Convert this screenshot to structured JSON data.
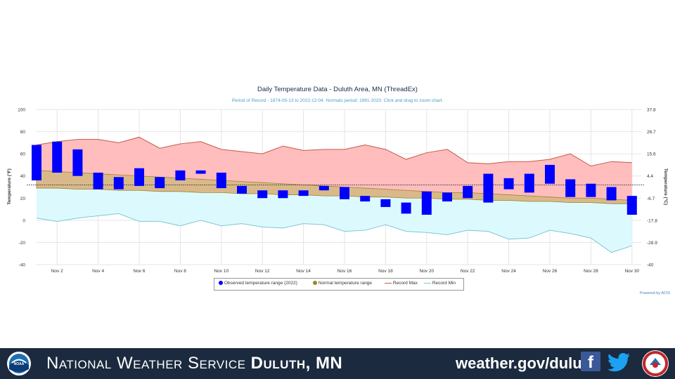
{
  "chart_data": {
    "type": "bar",
    "title": "Daily Temperature Data - Duluth Area, MN (ThreadEx)",
    "subtitle": "Period of Record - 1874-05-13 to 2022-12-04. Normals period: 1991-2020. Click and drag to zoom chart.",
    "ylabel_left": "Temperature (°F)",
    "ylabel_right": "Temperature (°C)",
    "ylim": [
      -40,
      100
    ],
    "yticks_left": [
      "100",
      "80",
      "60",
      "40",
      "20",
      "0",
      "-20",
      "-40"
    ],
    "yticks_right": [
      "37.8",
      "26.7",
      "15.6",
      "4.4",
      "-6.7",
      "-17.8",
      "-28.9",
      "-40"
    ],
    "xtick_labels": [
      "Nov 2",
      "Nov 4",
      "Nov 6",
      "Nov 8",
      "Nov 10",
      "Nov 12",
      "Nov 14",
      "Nov 16",
      "Nov 18",
      "Nov 20",
      "Nov 22",
      "Nov 24",
      "Nov 26",
      "Nov 28",
      "Nov 30"
    ],
    "days": [
      1,
      2,
      3,
      4,
      5,
      6,
      7,
      8,
      9,
      10,
      11,
      12,
      13,
      14,
      15,
      16,
      17,
      18,
      19,
      20,
      21,
      22,
      23,
      24,
      25,
      26,
      27,
      28,
      29,
      30
    ],
    "series": [
      {
        "name": "Observed temperature range (2022)",
        "high": [
          68,
          71,
          64,
          43,
          39,
          47,
          39,
          45,
          45,
          43,
          31,
          27,
          27,
          27,
          31,
          30,
          22,
          19,
          16,
          26,
          25,
          31,
          42,
          38,
          42,
          50,
          37,
          33,
          30,
          22
        ],
        "low": [
          36,
          43,
          40,
          28,
          28,
          31,
          29,
          36,
          42,
          29,
          24,
          20,
          20,
          22,
          27,
          19,
          17,
          12,
          6,
          5,
          17,
          20,
          16,
          28,
          25,
          33,
          21,
          21,
          18,
          5
        ]
      },
      {
        "name": "Normal temperature range",
        "high": [
          45,
          44,
          43,
          42,
          41,
          40,
          39,
          38,
          37,
          36,
          35,
          34,
          33,
          32,
          31,
          30,
          29,
          28,
          27,
          26,
          25,
          25,
          24,
          23,
          22,
          21,
          20,
          20,
          19,
          18
        ],
        "low": [
          29,
          29,
          28,
          28,
          27,
          27,
          26,
          26,
          25,
          25,
          24,
          24,
          23,
          23,
          22,
          22,
          21,
          21,
          20,
          20,
          19,
          19,
          18,
          18,
          17,
          17,
          16,
          16,
          15,
          15
        ]
      },
      {
        "name": "Record Max",
        "values": [
          68,
          71,
          73,
          73,
          70,
          75,
          65,
          69,
          71,
          64,
          62,
          60,
          67,
          63,
          64,
          64,
          68,
          64,
          55,
          61,
          64,
          52,
          51,
          53,
          53,
          55,
          60,
          49,
          53,
          52
        ]
      },
      {
        "name": "Record Min",
        "values": [
          2,
          -1,
          2,
          4,
          6,
          -1,
          -1,
          -5,
          0,
          -5,
          -3,
          -6,
          -7,
          -3,
          -4,
          -10,
          -9,
          -4,
          -10,
          -11,
          -13,
          -9,
          -10,
          -17,
          -16,
          -9,
          -12,
          -16,
          -29,
          -23
        ]
      }
    ],
    "mean_line": 32,
    "colors": {
      "observed": "#0000ff",
      "normal": "#d9b98a",
      "normal_border": "#a0822d",
      "record_max_fill": "#ffb6b6",
      "record_max_line": "#c8584a",
      "record_min_fill": "#dafafe",
      "record_min_line": "#7fc6d6",
      "title": "#1a2a4a",
      "subtitle": "#4aa0c4",
      "grid": "#e4e4e4"
    }
  },
  "legend": {
    "observed": "Observed temperature range (2022)",
    "normal": "Normal temperature range",
    "record_max": "Record Max",
    "record_min": "Record Min"
  },
  "credit": "Powered by ACIS",
  "footer": {
    "title_light": "National Weather Service",
    "title_bold": "Duluth, MN",
    "url": "weather.gov/duluth",
    "facebook_icon": "facebook-icon",
    "twitter_icon": "twitter-icon",
    "noaa_logo": "noaa-logo",
    "nws_logo": "nws-logo",
    "noaa_text": "NOAA",
    "colors": {
      "bar": "#1b2a3e",
      "text": "#ffffff"
    }
  }
}
